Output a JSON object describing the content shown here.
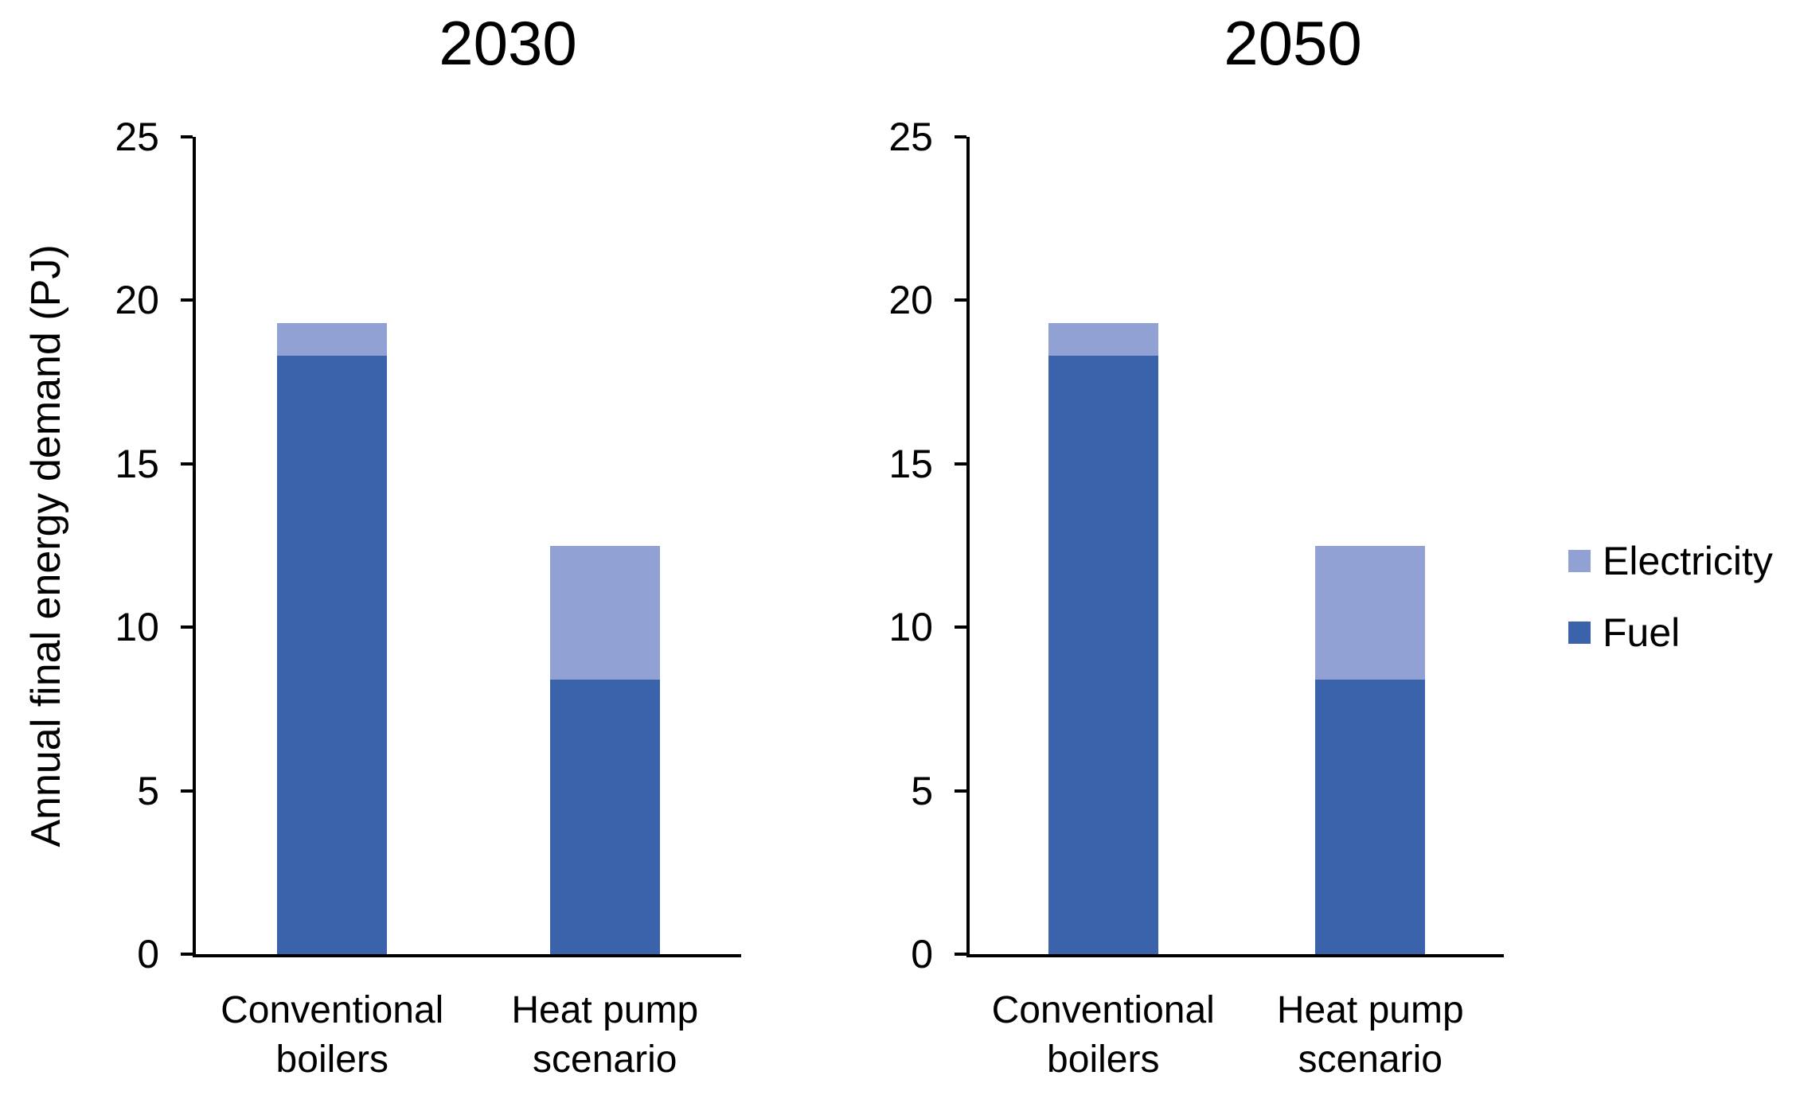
{
  "chart_data": [
    {
      "type": "bar",
      "stacked": true,
      "title": "2030",
      "categories": [
        "Conventional boilers",
        "Heat pump scenario"
      ],
      "series": [
        {
          "name": "Fuel",
          "color": "#3A63AC",
          "values": [
            18.3,
            8.4
          ]
        },
        {
          "name": "Electricity",
          "color": "#92A1D4",
          "values": [
            1.0,
            4.1
          ]
        }
      ],
      "ylabel": "Annual final energy demand (PJ)",
      "ylim": [
        0,
        25
      ],
      "yticks": [
        0,
        5,
        10,
        15,
        20,
        25
      ],
      "grid": false
    },
    {
      "type": "bar",
      "stacked": true,
      "title": "2050",
      "categories": [
        "Conventional boilers",
        "Heat pump scenario"
      ],
      "series": [
        {
          "name": "Fuel",
          "color": "#3A63AC",
          "values": [
            18.3,
            8.4
          ]
        },
        {
          "name": "Electricity",
          "color": "#92A1D4",
          "values": [
            1.0,
            4.1
          ]
        }
      ],
      "ylabel": "",
      "ylim": [
        0,
        25
      ],
      "yticks": [
        0,
        5,
        10,
        15,
        20,
        25
      ],
      "grid": false
    }
  ],
  "legend": {
    "position": "right",
    "items": [
      {
        "label": "Electricity",
        "color": "#92A1D4"
      },
      {
        "label": "Fuel",
        "color": "#3A63AC"
      }
    ]
  }
}
